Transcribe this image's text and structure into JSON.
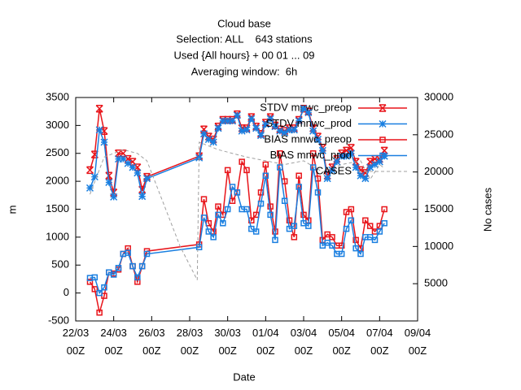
{
  "chart_data": {
    "type": "line",
    "title": "Cloud base",
    "subtitle": [
      "Selection: ALL    643 stations",
      "Used {All hours} + 00 01 ... 09",
      "Averaging window:  6h"
    ],
    "xlabel": "Date",
    "ylabel": "m",
    "y2label": "No cases",
    "xlim": [
      0,
      18
    ],
    "xticks": [
      {
        "value": 0,
        "label": "22/03\n00Z"
      },
      {
        "value": 2,
        "label": "24/03\n00Z"
      },
      {
        "value": 4,
        "label": "26/03\n00Z"
      },
      {
        "value": 6,
        "label": "28/03\n00Z"
      },
      {
        "value": 8,
        "label": "30/03\n00Z"
      },
      {
        "value": 10,
        "label": "01/04\n00Z"
      },
      {
        "value": 12,
        "label": "03/04\n00Z"
      },
      {
        "value": 14,
        "label": "05/04\n00Z"
      },
      {
        "value": 16,
        "label": "07/04\n00Z"
      },
      {
        "value": 18,
        "label": "09/04\n00Z"
      }
    ],
    "ylim": [
      -500,
      3500
    ],
    "yticks": [
      -500,
      0,
      500,
      1000,
      1500,
      2000,
      2500,
      3000,
      3500
    ],
    "y2lim": [
      0,
      30000
    ],
    "y2ticks": [
      5000,
      10000,
      15000,
      20000,
      25000,
      30000
    ],
    "x": [
      0.75,
      1,
      1.25,
      1.5,
      1.75,
      2,
      2.25,
      2.5,
      2.75,
      3,
      3.25,
      3.5,
      3.75,
      6.5,
      6.75,
      7,
      7.25,
      7.5,
      7.75,
      8,
      8.25,
      8.5,
      8.75,
      9,
      9.25,
      9.5,
      9.75,
      10,
      10.25,
      10.5,
      10.75,
      11,
      11.25,
      11.5,
      11.75,
      12,
      12.25,
      12.5,
      12.75,
      13,
      13.25,
      13.5,
      13.75,
      14,
      14.25,
      14.5,
      14.75,
      15,
      15.25,
      15.5,
      15.75,
      16,
      16.25
    ],
    "series": [
      {
        "name": "STDV mnwc_preop",
        "color": "#e8141a",
        "marker": "cross",
        "values": [
          2200,
          2480,
          3300,
          2900,
          2100,
          1800,
          2500,
          2500,
          2400,
          2350,
          2250,
          1850,
          2080,
          2450,
          2930,
          2800,
          2750,
          2980,
          3100,
          3100,
          3100,
          3200,
          2950,
          2950,
          3150,
          2980,
          2850,
          3050,
          3150,
          3000,
          2930,
          2900,
          2950,
          2950,
          3100,
          3300,
          3250,
          2950,
          2800,
          2600,
          2100,
          2250,
          2400,
          2500,
          2550,
          2600,
          2350,
          2200,
          2150,
          2350,
          2400,
          2400,
          2550
        ]
      },
      {
        "name": "STDV mnwc_prod",
        "color": "#1a7fe0",
        "marker": "star",
        "values": [
          1880,
          2080,
          2920,
          2700,
          1980,
          1720,
          2400,
          2400,
          2320,
          2250,
          2150,
          1730,
          2050,
          2420,
          2850,
          2750,
          2700,
          2950,
          3080,
          3080,
          3080,
          3180,
          2900,
          2920,
          3120,
          2950,
          2820,
          3020,
          3120,
          2980,
          2900,
          2870,
          2920,
          2920,
          3080,
          3300,
          3230,
          2900,
          2750,
          2550,
          2050,
          2200,
          2350,
          2450,
          2450,
          2500,
          2250,
          2100,
          2050,
          2250,
          2300,
          2350,
          2450
        ]
      },
      {
        "name": "BIAS mnwc_preop",
        "color": "#e8141a",
        "marker": "square",
        "values": [
          200,
          70,
          -350,
          -50,
          370,
          350,
          420,
          700,
          800,
          480,
          200,
          480,
          750,
          870,
          1680,
          1250,
          1100,
          1550,
          1400,
          2200,
          1650,
          1800,
          2350,
          2200,
          1300,
          1400,
          1800,
          2300,
          1550,
          1100,
          2500,
          2000,
          1300,
          1000,
          2100,
          1400,
          1300,
          2500,
          2050,
          950,
          1050,
          1000,
          850,
          850,
          1450,
          1500,
          950,
          800,
          1300,
          1200,
          1100,
          1200,
          1500
        ]
      },
      {
        "name": "BIAS mnwc_prod",
        "color": "#1a7fe0",
        "marker": "square",
        "values": [
          270,
          280,
          0,
          100,
          370,
          330,
          450,
          700,
          720,
          480,
          280,
          480,
          700,
          820,
          1350,
          1100,
          1000,
          1400,
          1250,
          1500,
          1900,
          1800,
          1500,
          1500,
          1150,
          1100,
          1600,
          2100,
          1400,
          950,
          2250,
          1650,
          1150,
          1200,
          1900,
          1250,
          1200,
          2250,
          1800,
          850,
          900,
          850,
          700,
          700,
          1150,
          1300,
          800,
          700,
          1000,
          1000,
          950,
          1100,
          1250
        ]
      },
      {
        "name": "CASES",
        "color": "#a0a0a0",
        "axis": "y2",
        "style": "dashed",
        "x": [
          0.75,
          1.5,
          2.5,
          3.25,
          3.75,
          5.5,
          6.4,
          6.5,
          7.5,
          9,
          10,
          11,
          12,
          13,
          14,
          15,
          15.5,
          16,
          16.25
        ],
        "values": [
          17000,
          22000,
          23000,
          22500,
          21500,
          10000,
          5500,
          24000,
          23000,
          22000,
          21500,
          21000,
          21500,
          20000,
          21000,
          21500,
          19000,
          21000,
          20500
        ]
      }
    ]
  }
}
